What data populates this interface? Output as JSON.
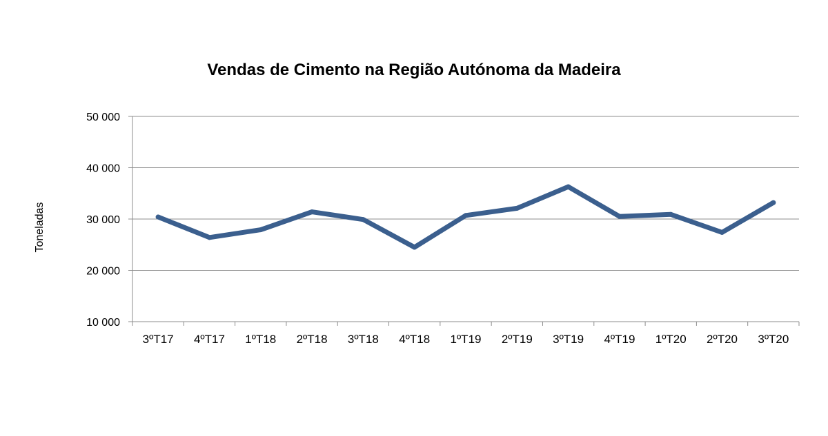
{
  "chart_data": {
    "type": "line",
    "title": "Vendas de Cimento na Região Autónoma da Madeira",
    "ylabel": "Toneladas",
    "xlabel": "",
    "categories": [
      "3ºT17",
      "4ºT17",
      "1ºT18",
      "2ºT18",
      "3ºT18",
      "4ºT18",
      "1ºT19",
      "2ºT19",
      "3ºT19",
      "4ºT19",
      "1ºT20",
      "2ºT20",
      "3ºT20"
    ],
    "series": [
      {
        "values": [
          30400,
          26400,
          27900,
          31400,
          29900,
          24500,
          30700,
          32100,
          36300,
          30500,
          30900,
          27400,
          33200
        ],
        "color": "#3B5F8E"
      }
    ],
    "ylim": [
      10000,
      50000
    ],
    "yticks": [
      10000,
      20000,
      30000,
      40000,
      50000
    ],
    "ytick_labels": [
      "10 000",
      "20 000",
      "30 000",
      "40 000",
      "50 000"
    ],
    "grid": true,
    "legend": "none"
  }
}
